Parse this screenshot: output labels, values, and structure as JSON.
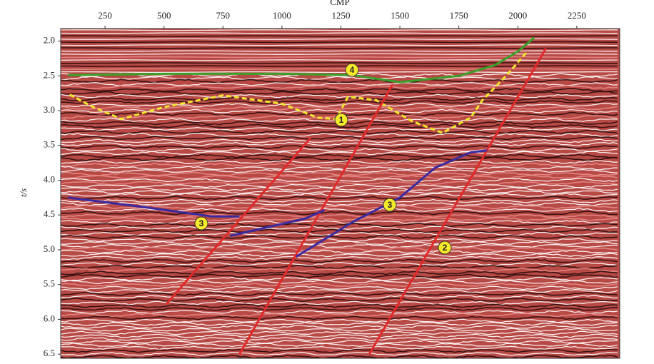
{
  "chart_data": {
    "type": "seismic-section",
    "xlabel": "CMP",
    "ylabel": "t/s",
    "xlim": [
      62,
      2432
    ],
    "xticks": [
      250,
      500,
      750,
      1000,
      1250,
      1500,
      1750,
      2000,
      2250
    ],
    "ylim": [
      1.82,
      6.56
    ],
    "yticks": [
      {
        "value": 2,
        "label": "2.0"
      },
      2.5,
      {
        "value": 3,
        "label": "3.0"
      },
      3.5,
      {
        "value": 4,
        "label": "4.0"
      },
      4.5,
      {
        "value": 5,
        "label": "5.0"
      },
      5.5,
      {
        "value": 6,
        "label": "6.0"
      },
      6.5
    ],
    "y_inverted": true,
    "lines": [
      {
        "label": "4",
        "color": "#3aa02a",
        "dashed": false,
        "x": [
          92,
          500,
          1000,
          1300,
          1500,
          1750,
          1900,
          2000,
          2070
        ],
        "y": [
          2.49,
          2.47,
          2.47,
          2.49,
          2.59,
          2.5,
          2.35,
          2.15,
          1.95
        ]
      },
      {
        "label": "1",
        "color": "#f2e62e",
        "dashed": true,
        "x": [
          100,
          200,
          320,
          500,
          750,
          1000,
          1150,
          1230,
          1280,
          1400,
          1550,
          1680,
          1800,
          1850,
          1950,
          2040
        ],
        "y": [
          2.77,
          2.95,
          3.12,
          2.95,
          2.78,
          2.9,
          3.1,
          3.12,
          2.8,
          2.85,
          3.15,
          3.32,
          3.1,
          2.85,
          2.5,
          2.15
        ]
      },
      {
        "label": null,
        "color": "#e02a2a",
        "dashed": false,
        "x": [
          510,
          1120
        ],
        "y": [
          5.78,
          3.4
        ]
      },
      {
        "label": null,
        "color": "#e02a2a",
        "dashed": false,
        "x": [
          820,
          1470
        ],
        "y": [
          6.5,
          2.62
        ]
      },
      {
        "label": "2",
        "color": "#e02a2a",
        "dashed": false,
        "x": [
          1370,
          2120
        ],
        "y": [
          6.5,
          2.1
        ]
      },
      {
        "label": "3",
        "color": "#3a2aa0",
        "dashed": false,
        "x": [
          92,
          400,
          700,
          820
        ],
        "y": [
          4.25,
          4.38,
          4.52,
          4.52
        ]
      },
      {
        "label": null,
        "color": "#3a2aa0",
        "dashed": false,
        "x": [
          780,
          1100,
          1180
        ],
        "y": [
          4.8,
          4.55,
          4.43
        ]
      },
      {
        "label": "3",
        "color": "#3a2aa0",
        "dashed": false,
        "x": [
          1060,
          1300,
          1500,
          1650,
          1800,
          1870
        ],
        "y": [
          5.1,
          4.6,
          4.25,
          3.82,
          3.6,
          3.57
        ]
      }
    ]
  }
}
